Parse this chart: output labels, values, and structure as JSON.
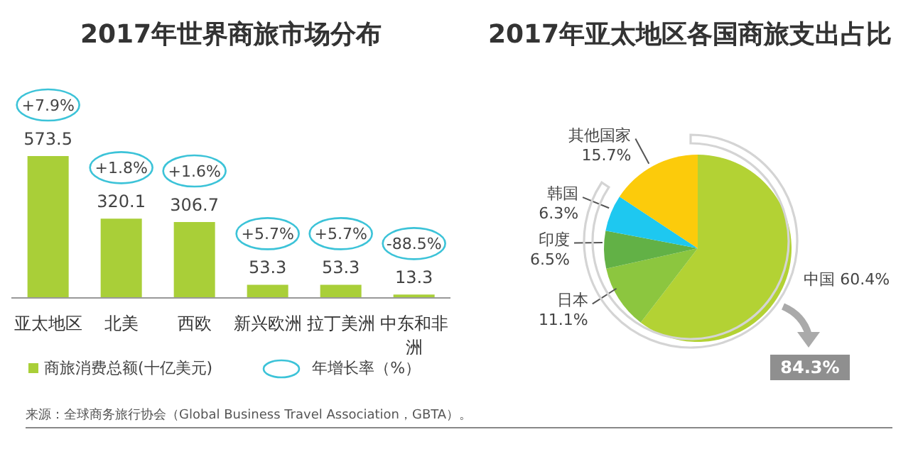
{
  "chart_data": [
    {
      "type": "bar",
      "title": "2017年世界商旅市场分布",
      "categories": [
        "亚太地区",
        "北美",
        "西欧",
        "新兴欧洲",
        "拉丁美洲",
        "中东和非洲"
      ],
      "series": [
        {
          "name": "商旅消费总额(十亿美元)",
          "color": "#a9cf38",
          "values": [
            573.5,
            320.1,
            306.7,
            53.3,
            53.3,
            13.3
          ]
        }
      ],
      "data_labels": true,
      "tick_labels": "x",
      "legend": "bottom",
      "annotations": [
        "+7.9%",
        "+1.8%",
        "+1.6%",
        "+5.7%",
        "+5.7%",
        "-88.5%",
        "年增长率（%）",
        "来源：全球商务旅行协会（Global Business Travel Association，GBTA）。"
      ]
    },
    {
      "type": "pie",
      "title": "2017年亚太地区各国商旅支出占比",
      "categories": [
        "中国",
        "日本",
        "印度",
        "韩国",
        "其他国家"
      ],
      "values": [
        60.4,
        11.1,
        6.5,
        6.3,
        15.7
      ],
      "value_labels": [
        "60.4%",
        "11.1%",
        "6.5%",
        "6.3%",
        "15.7%"
      ],
      "colors": [
        "#b3d234",
        "#8cc63f",
        "#62b146",
        "#1ec8f0",
        "#fccb0b"
      ],
      "annotations": [
        "84.3%"
      ]
    }
  ]
}
